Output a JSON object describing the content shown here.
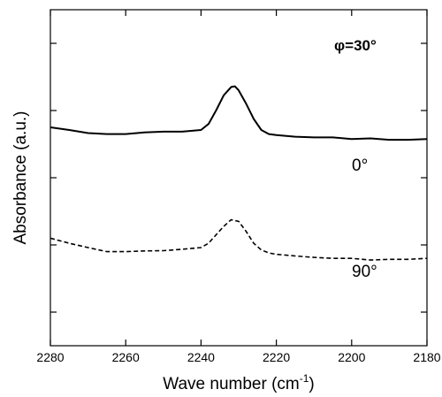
{
  "chart_data": {
    "type": "line",
    "xlabel": "Wave number (cm",
    "xlabel_sup": "-1",
    "xlabel_close": ")",
    "ylabel": "Absorbance (a.u.)",
    "xlim": [
      2280,
      2180
    ],
    "x_reversed": true,
    "x_ticks": [
      2280,
      2260,
      2240,
      2220,
      2200,
      2180
    ],
    "ylim": [
      0,
      10
    ],
    "y_ticks": [
      1.0,
      3.0,
      5.0,
      7.0,
      9.0
    ],
    "y_tick_labels_shown": false,
    "grid": false,
    "legend": "none",
    "annotations": [
      {
        "text": "φ=30°",
        "bold": true
      },
      {
        "text": "0°"
      },
      {
        "text": "90°"
      }
    ],
    "series": [
      {
        "label": "0°",
        "style": "solid",
        "x": [
          2280,
          2275,
          2270,
          2265,
          2260,
          2255,
          2250,
          2245,
          2240,
          2238,
          2236,
          2234,
          2232,
          2231,
          2230,
          2228,
          2226,
          2224,
          2222,
          2220,
          2215,
          2210,
          2205,
          2200,
          2195,
          2190,
          2185,
          2180
        ],
        "y": [
          6.5,
          6.42,
          6.33,
          6.3,
          6.3,
          6.35,
          6.37,
          6.37,
          6.42,
          6.6,
          7.0,
          7.45,
          7.7,
          7.72,
          7.6,
          7.2,
          6.75,
          6.42,
          6.3,
          6.27,
          6.22,
          6.2,
          6.2,
          6.15,
          6.17,
          6.13,
          6.13,
          6.15
        ]
      },
      {
        "label": "90°",
        "style": "dashed",
        "x": [
          2280,
          2275,
          2270,
          2265,
          2260,
          2255,
          2250,
          2245,
          2240,
          2238,
          2236,
          2234,
          2232,
          2230,
          2228,
          2226,
          2224,
          2222,
          2220,
          2215,
          2210,
          2205,
          2200,
          2195,
          2190,
          2185,
          2180
        ],
        "y": [
          3.2,
          3.05,
          2.92,
          2.8,
          2.8,
          2.82,
          2.83,
          2.87,
          2.92,
          3.05,
          3.3,
          3.55,
          3.75,
          3.7,
          3.4,
          3.05,
          2.85,
          2.76,
          2.72,
          2.67,
          2.63,
          2.6,
          2.6,
          2.55,
          2.57,
          2.57,
          2.6
        ]
      }
    ]
  }
}
